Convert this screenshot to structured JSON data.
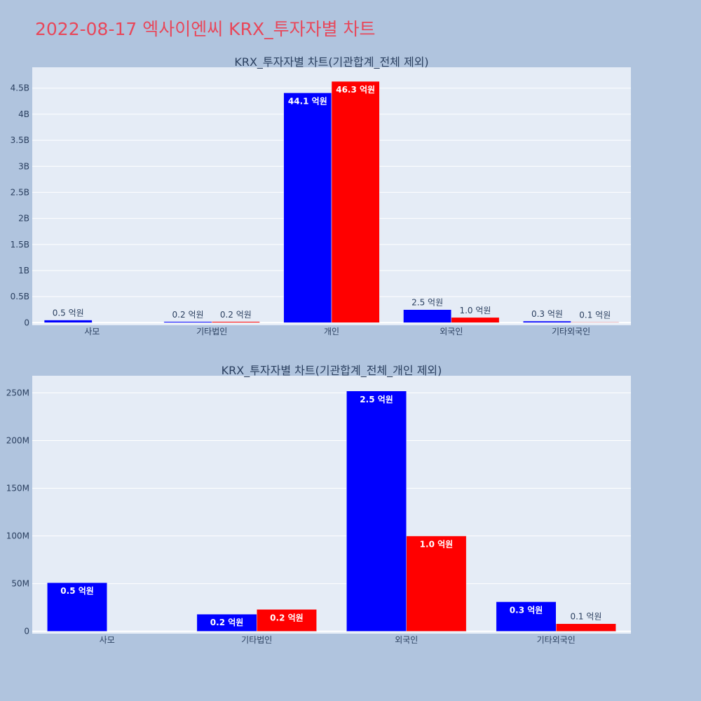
{
  "page_title": "2022-08-17 엑사이엔씨 KRX_투자자별 차트",
  "colors": {
    "series1": "#0000ff",
    "series2": "#ff0000",
    "plot_bg": "#e5ecf6",
    "page_bg": "#b0c4de",
    "title": "#e8475a"
  },
  "chart_data": [
    {
      "type": "bar",
      "title": "KRX_투자자별 차트(기관합계_전체 제외)",
      "categories": [
        "사모",
        "기타법인",
        "개인",
        "외국인",
        "기타외국인"
      ],
      "ylim": [
        -50000000,
        4900000000
      ],
      "yticks": [
        0,
        500000000,
        1000000000,
        1500000000,
        2000000000,
        2500000000,
        3000000000,
        3500000000,
        4000000000,
        4500000000
      ],
      "ytick_labels": [
        "0",
        "0.5B",
        "1B",
        "1.5B",
        "2B",
        "2.5B",
        "3B",
        "3.5B",
        "4B",
        "4.5B"
      ],
      "grid": true,
      "series": [
        {
          "values": [
            50000000,
            20000000,
            4410000000,
            250000000,
            30000000
          ],
          "labels": [
            "0.5 억원",
            "0.2 억원",
            "44.1 억원",
            "2.5 억원",
            "0.3 억원"
          ]
        },
        {
          "values": [
            0,
            20000000,
            4630000000,
            100000000,
            10000000
          ],
          "labels": [
            "",
            "0.2 억원",
            "46.3 억원",
            "1.0 억원",
            "0.1 억원"
          ]
        }
      ]
    },
    {
      "type": "bar",
      "title": "KRX_투자자별 차트(기관합계_전체_개인 제외)",
      "categories": [
        "사모",
        "기타법인",
        "외국인",
        "기타외국인"
      ],
      "ylim": [
        -2500000,
        268000000
      ],
      "yticks": [
        0,
        50000000,
        100000000,
        150000000,
        200000000,
        250000000
      ],
      "ytick_labels": [
        "0",
        "50M",
        "100M",
        "150M",
        "200M",
        "250M"
      ],
      "grid": true,
      "series": [
        {
          "values": [
            51000000,
            18000000,
            252000000,
            31000000
          ],
          "labels": [
            "0.5 억원",
            "0.2 억원",
            "2.5 억원",
            "0.3 억원"
          ]
        },
        {
          "values": [
            0,
            23000000,
            100000000,
            8000000
          ],
          "labels": [
            "",
            "0.2 억원",
            "1.0 억원",
            "0.1 억원"
          ]
        }
      ]
    }
  ]
}
